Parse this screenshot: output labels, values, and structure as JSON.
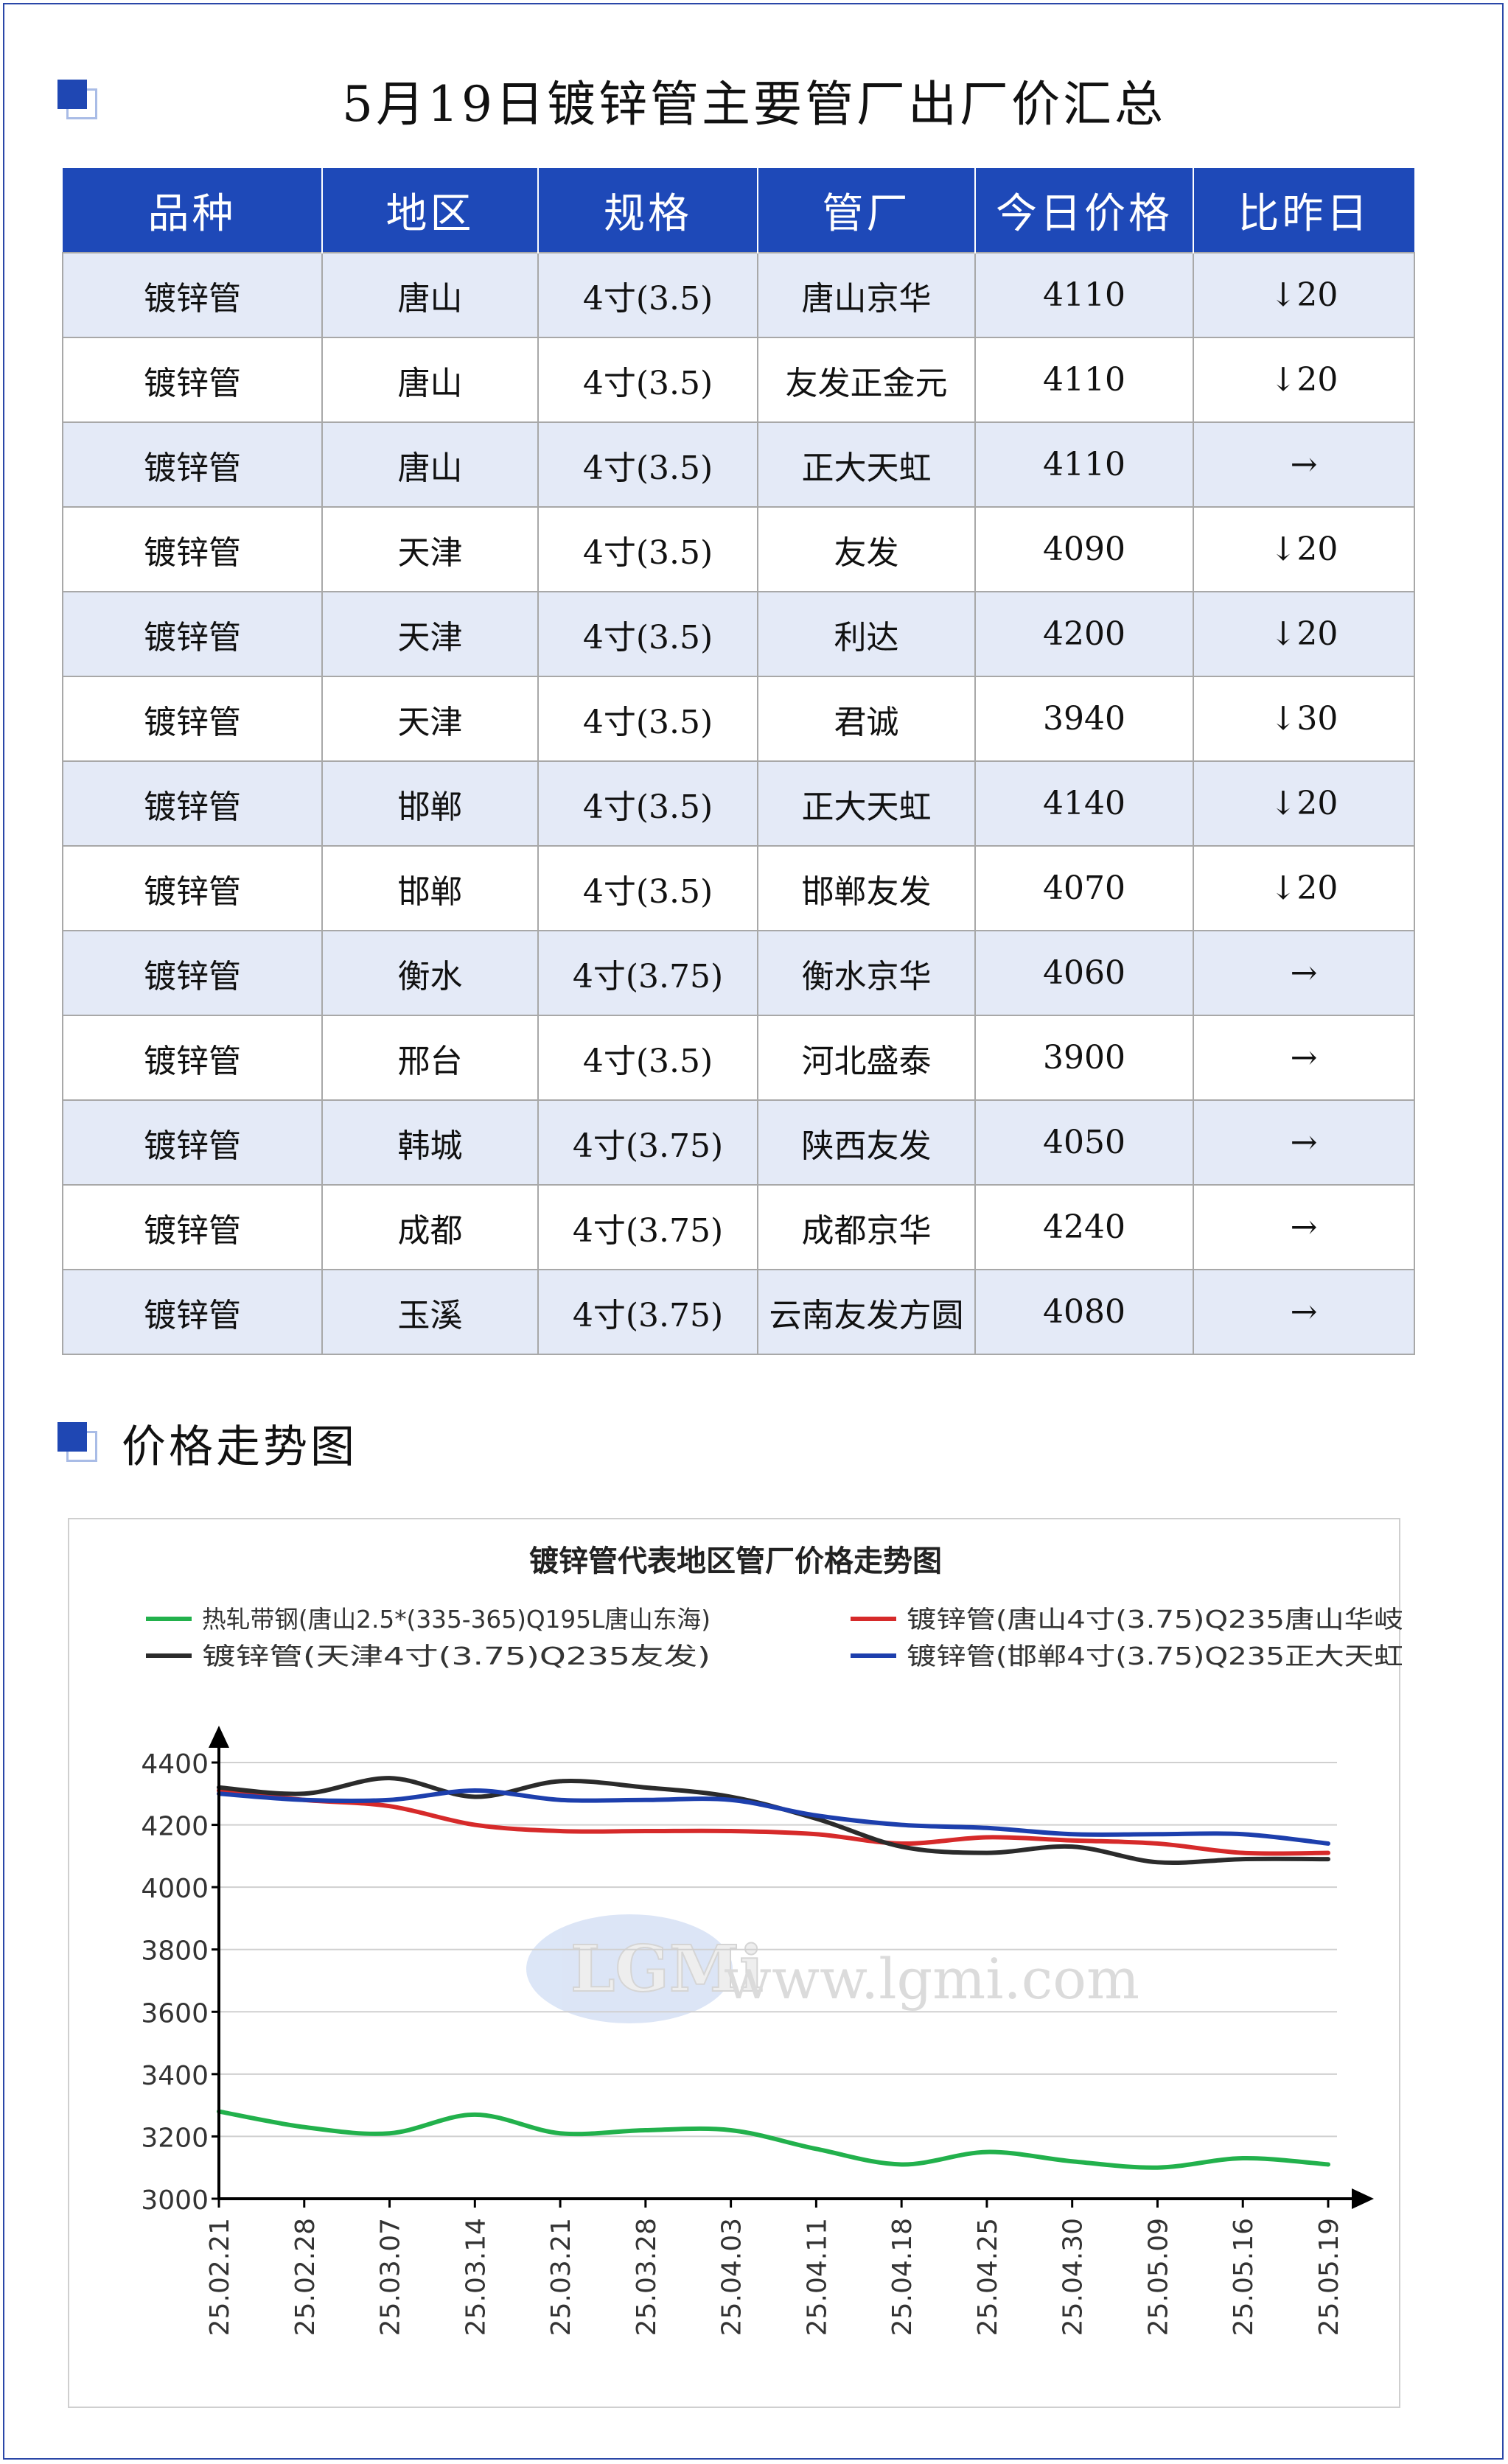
{
  "title": "5月19日镀锌管主要管厂出厂价汇总",
  "section2_title": "价格走势图",
  "table": {
    "headers": [
      "品种",
      "地区",
      "规格",
      "管厂",
      "今日价格",
      "比昨日"
    ],
    "rows": [
      {
        "product": "镀锌管",
        "region": "唐山",
        "spec": "4寸(3.5)",
        "mill": "唐山京华",
        "price": "4110",
        "change": "↓20",
        "trend": "down"
      },
      {
        "product": "镀锌管",
        "region": "唐山",
        "spec": "4寸(3.5)",
        "mill": "友发正金元",
        "price": "4110",
        "change": "↓20",
        "trend": "down"
      },
      {
        "product": "镀锌管",
        "region": "唐山",
        "spec": "4寸(3.5)",
        "mill": "正大天虹",
        "price": "4110",
        "change": "→",
        "trend": "flat"
      },
      {
        "product": "镀锌管",
        "region": "天津",
        "spec": "4寸(3.5)",
        "mill": "友发",
        "price": "4090",
        "change": "↓20",
        "trend": "down"
      },
      {
        "product": "镀锌管",
        "region": "天津",
        "spec": "4寸(3.5)",
        "mill": "利达",
        "price": "4200",
        "change": "↓20",
        "trend": "down"
      },
      {
        "product": "镀锌管",
        "region": "天津",
        "spec": "4寸(3.5)",
        "mill": "君诚",
        "price": "3940",
        "change": "↓30",
        "trend": "down"
      },
      {
        "product": "镀锌管",
        "region": "邯郸",
        "spec": "4寸(3.5)",
        "mill": "正大天虹",
        "price": "4140",
        "change": "↓20",
        "trend": "down"
      },
      {
        "product": "镀锌管",
        "region": "邯郸",
        "spec": "4寸(3.5)",
        "mill": "邯郸友发",
        "price": "4070",
        "change": "↓20",
        "trend": "down"
      },
      {
        "product": "镀锌管",
        "region": "衡水",
        "spec": "4寸(3.75)",
        "mill": "衡水京华",
        "price": "4060",
        "change": "→",
        "trend": "flat"
      },
      {
        "product": "镀锌管",
        "region": "邢台",
        "spec": "4寸(3.5)",
        "mill": "河北盛泰",
        "price": "3900",
        "change": "→",
        "trend": "flat"
      },
      {
        "product": "镀锌管",
        "region": "韩城",
        "spec": "4寸(3.75)",
        "mill": "陕西友发",
        "price": "4050",
        "change": "→",
        "trend": "flat"
      },
      {
        "product": "镀锌管",
        "region": "成都",
        "spec": "4寸(3.75)",
        "mill": "成都京华",
        "price": "4240",
        "change": "→",
        "trend": "flat"
      },
      {
        "product": "镀锌管",
        "region": "玉溪",
        "spec": "4寸(3.75)",
        "mill": "云南友发方圆",
        "price": "4080",
        "change": "→",
        "trend": "flat"
      }
    ]
  },
  "colors": {
    "header_bg": "#1e49b8",
    "row_alt_bg": "#e4eaf7",
    "down": "#23a845",
    "series_green": "#22b14c",
    "series_red": "#d62a2a",
    "series_black": "#2b2b2b",
    "series_blue": "#1d3fad"
  },
  "watermark": {
    "logo": "LGMi",
    "url": "www.lgmi.com"
  },
  "chart_data": {
    "type": "line",
    "title": "镀锌管代表地区管厂价格走势图",
    "categories": [
      "25.02.21",
      "25.02.28",
      "25.03.07",
      "25.03.14",
      "25.03.21",
      "25.03.28",
      "25.04.03",
      "25.04.11",
      "25.04.18",
      "25.04.25",
      "25.04.30",
      "25.05.09",
      "25.05.16",
      "25.05.19"
    ],
    "ylim": [
      3000,
      4400
    ],
    "yticks": [
      3000,
      3200,
      3400,
      3600,
      3800,
      4000,
      4200,
      4400
    ],
    "grid": true,
    "legend": "top",
    "series": [
      {
        "name": "热轧带钢(唐山2.5*(335-365)Q195L唐山东海)",
        "color": "#22b14c",
        "values": [
          3280,
          3230,
          3210,
          3270,
          3210,
          3220,
          3220,
          3160,
          3110,
          3150,
          3120,
          3100,
          3130,
          3110
        ]
      },
      {
        "name": "镀锌管(唐山4寸(3.75)Q235唐山华岐)",
        "color": "#d62a2a",
        "values": [
          4310,
          4280,
          4260,
          4200,
          4180,
          4180,
          4180,
          4170,
          4140,
          4160,
          4150,
          4140,
          4110,
          4110
        ]
      },
      {
        "name": "镀锌管(天津4寸(3.75)Q235友发)",
        "color": "#2b2b2b",
        "values": [
          4320,
          4300,
          4350,
          4290,
          4340,
          4320,
          4290,
          4220,
          4130,
          4110,
          4130,
          4080,
          4090,
          4090
        ]
      },
      {
        "name": "镀锌管(邯郸4寸(3.75)Q235正大天虹)",
        "color": "#1d3fad",
        "values": [
          4300,
          4280,
          4280,
          4310,
          4280,
          4280,
          4280,
          4230,
          4200,
          4190,
          4170,
          4170,
          4170,
          4140
        ]
      }
    ]
  }
}
